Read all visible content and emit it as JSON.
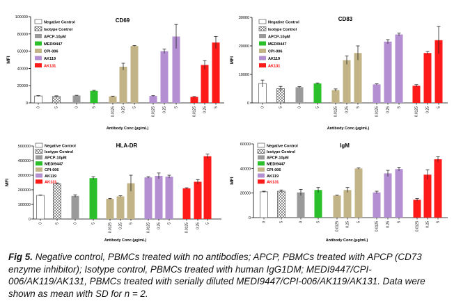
{
  "x_tick_labels": [
    "0",
    "5",
    "0",
    "5",
    "0.0125",
    "0.25",
    "5",
    "0.0125",
    "0.25",
    "5",
    "0.0125",
    "0.25",
    "5"
  ],
  "legend_items": [
    {
      "name": "Negative Control",
      "fill": "#ffffff",
      "pattern": "none",
      "text_color": "#000000"
    },
    {
      "name": "Isotype Control",
      "fill": "#ffffff",
      "pattern": "checker",
      "text_color": "#000000"
    },
    {
      "name": "APCP-10µM",
      "fill": "#9a9a9a",
      "pattern": "none",
      "text_color": "#000000"
    },
    {
      "name": "MEDI9447",
      "fill": "#2bc02b",
      "pattern": "none",
      "text_color": "#000000"
    },
    {
      "name": "CPI-006",
      "fill": "#c2b487",
      "pattern": "none",
      "text_color": "#000000"
    },
    {
      "name": "AK119",
      "fill": "#b48fd2",
      "pattern": "none",
      "text_color": "#000000"
    },
    {
      "name": "AK131",
      "fill": "#ff1a1a",
      "pattern": "none",
      "text_color": "#ff0000"
    }
  ],
  "chart_data": [
    {
      "type": "bar",
      "title": "CD69",
      "ylabel": "MFI",
      "xlabel": "Antibody Conc.(µg/mL)",
      "ylim": [
        0,
        100000
      ],
      "yticks": [
        0,
        20000,
        40000,
        60000,
        80000,
        100000
      ],
      "ytick_labels": [
        "0",
        "20000",
        "40000",
        "60000",
        "80000",
        "100000"
      ],
      "groups": [
        "Negative Control",
        "Isotype Control",
        "APCP-10µM",
        "MEDI9447",
        "CPI-006",
        "CPI-006",
        "CPI-006",
        "AK119",
        "AK119",
        "AK119",
        "AK131",
        "AK131",
        "AK131"
      ],
      "categories": [
        "0",
        "5",
        "0",
        "5",
        "0.0125",
        "0.25",
        "5",
        "0.0125",
        "0.25",
        "5",
        "0.0125",
        "0.25",
        "5"
      ],
      "values": [
        8000,
        7500,
        8500,
        14000,
        7500,
        42000,
        66000,
        8000,
        60000,
        77000,
        7000,
        44000,
        70000
      ],
      "sd": [
        500,
        700,
        300,
        600,
        300,
        4000,
        500,
        500,
        2500,
        14000,
        300,
        5000,
        7000
      ]
    },
    {
      "type": "bar",
      "title": "CD83",
      "ylabel": "MFI",
      "xlabel": "Antibody Conc.(µg/mL)",
      "ylim": [
        0,
        30000
      ],
      "yticks": [
        0,
        10000,
        20000,
        30000
      ],
      "ytick_labels": [
        "0",
        "10000",
        "20000",
        "30000"
      ],
      "groups": [
        "Negative Control",
        "Isotype Control",
        "APCP-10µM",
        "MEDI9447",
        "CPI-006",
        "CPI-006",
        "CPI-006",
        "AK119",
        "AK119",
        "AK119",
        "AK131",
        "AK131",
        "AK131"
      ],
      "categories": [
        "0",
        "5",
        "0",
        "5",
        "0.0125",
        "0.25",
        "5",
        "0.0125",
        "0.25",
        "5",
        "0.0125",
        "0.25",
        "5"
      ],
      "values": [
        6800,
        5000,
        5500,
        6800,
        4500,
        15000,
        17500,
        6500,
        21500,
        24000,
        6000,
        17500,
        22000
      ],
      "sd": [
        1200,
        800,
        200,
        200,
        400,
        1500,
        2500,
        200,
        700,
        500,
        400,
        500,
        4800
      ]
    },
    {
      "type": "bar",
      "title": "HLA-DR",
      "ylabel": "MFI",
      "xlabel": "Antibody Conc.(µg/mL)",
      "ylim": [
        0,
        500000
      ],
      "yticks": [
        0,
        100000,
        200000,
        300000,
        400000,
        500000
      ],
      "ytick_labels": [
        "0",
        "100000",
        "200000",
        "300000",
        "400000",
        "500000"
      ],
      "groups": [
        "Negative Control",
        "Isotype Control",
        "APCP-10µM",
        "MEDI9447",
        "CPI-006",
        "CPI-006",
        "CPI-006",
        "AK119",
        "AK119",
        "AK119",
        "AK131",
        "AK131",
        "AK131"
      ],
      "categories": [
        "0",
        "5",
        "0",
        "5",
        "0.0125",
        "0.25",
        "5",
        "0.0125",
        "0.25",
        "5",
        "0.0125",
        "0.25",
        "5"
      ],
      "values": [
        162000,
        242000,
        158000,
        280000,
        138000,
        155000,
        245000,
        285000,
        295000,
        290000,
        210000,
        255000,
        430000
      ],
      "sd": [
        3000,
        5000,
        8000,
        10000,
        3000,
        4000,
        55000,
        5000,
        20000,
        10000,
        4000,
        15000,
        15000
      ]
    },
    {
      "type": "bar",
      "title": "IgM",
      "ylabel": "MFI",
      "xlabel": "Antibody Conc.(µg/mL)",
      "ylim": [
        0,
        60000
      ],
      "yticks": [
        0,
        20000,
        40000,
        60000
      ],
      "ytick_labels": [
        "0",
        "20000",
        "40000",
        "60000"
      ],
      "groups": [
        "Negative Control",
        "Isotype Control",
        "APCP-10µM",
        "MEDI9447",
        "CPI-006",
        "CPI-006",
        "CPI-006",
        "AK119",
        "AK119",
        "AK119",
        "AK131",
        "AK131",
        "AK131"
      ],
      "categories": [
        "0",
        "5",
        "0",
        "5",
        "0.0125",
        "0.25",
        "5",
        "0.0125",
        "0.25",
        "5",
        "0.0125",
        "0.25",
        "5"
      ],
      "values": [
        21000,
        21500,
        20500,
        22500,
        18000,
        22500,
        40000,
        20500,
        36000,
        39500,
        14500,
        35000,
        47500
      ],
      "sd": [
        500,
        1000,
        2500,
        2000,
        300,
        2000,
        500,
        1000,
        2500,
        1500,
        1000,
        4000,
        2000
      ]
    }
  ],
  "caption": {
    "label": "Fig 5.",
    "text": " Negative control, PBMCs treated with no antibodies; APCP, PBMCs treated with APCP (CD73 enzyme inhibitor); Isotype control, PBMCs treated with human IgG1DM; MEDI9447/CPI-006/AK119/AK131, PBMCs treated with serially diluted MEDI9447/CPI-006/AK119/AK131. Data were shown as mean with SD for n = 2."
  }
}
